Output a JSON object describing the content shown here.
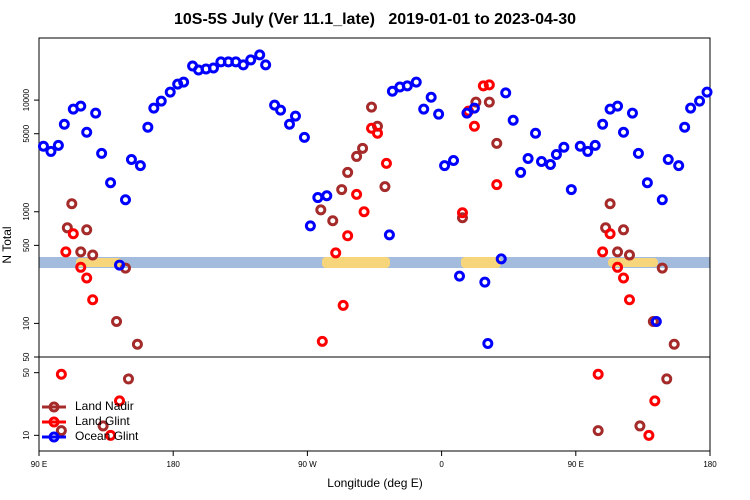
{
  "chart_data": [
    {
      "type": "scatter",
      "title": "10S-5S July (Ver 11.1_late)   2019-01-01 to 2023-04-30",
      "y_label": "N Total",
      "ylog": true,
      "xlim": [
        90,
        540
      ],
      "ylim": [
        50,
        36000
      ],
      "yticks": [
        50,
        100,
        500,
        1000,
        5000,
        10000
      ],
      "series": [
        {
          "color": "#a52a2a",
          "x": [
            109,
            112,
            118,
            122,
            126,
            142,
            148,
            156,
            279,
            287,
            293,
            297,
            303,
            307,
            313,
            317,
            322,
            374,
            383,
            392,
            397,
            470,
            473,
            478,
            482,
            486,
            502,
            508,
            516
          ],
          "values": [
            718,
            1180,
            437,
            689,
            410,
            104,
            313,
            65,
            1040,
            830,
            1580,
            2250,
            3130,
            3700,
            8650,
            5830,
            1680,
            884,
            9590,
            9590,
            4100,
            718,
            1180,
            437,
            689,
            410,
            104,
            313,
            65
          ]
        },
        {
          "color": "#ff0000",
          "x": [
            108,
            113,
            118,
            122,
            126,
            280,
            289,
            294,
            297,
            303,
            308,
            313,
            317,
            323,
            374,
            378,
            382,
            388,
            392,
            397,
            468,
            473,
            478,
            482,
            486
          ],
          "values": [
            437,
            635,
            318,
            255,
            163,
            69,
            428,
            145,
            609,
            1430,
            1000,
            5600,
            5050,
            2710,
            980,
            7960,
            5830,
            13400,
            13700,
            1750,
            437,
            635,
            318,
            255,
            163
          ]
        },
        {
          "color": "#0000ff",
          "x": [
            93,
            98,
            103,
            107,
            113,
            118,
            122,
            128,
            132,
            138,
            144,
            148,
            152,
            158,
            163,
            167,
            172,
            178,
            183,
            187,
            193,
            197,
            202,
            207,
            212,
            217,
            222,
            227,
            232,
            238,
            242,
            248,
            252,
            258,
            262,
            268,
            272,
            277,
            283,
            325,
            327,
            332,
            337,
            343,
            348,
            353,
            358,
            362,
            368,
            372,
            377,
            382,
            389,
            391,
            400,
            403,
            408,
            413,
            418,
            423,
            427,
            433,
            437,
            442,
            447,
            453,
            458,
            463,
            468,
            473,
            478,
            482,
            488,
            492,
            498,
            504,
            508,
            512,
            519,
            523,
            527,
            533,
            538
          ],
          "values": [
            3860,
            3470,
            3930,
            6080,
            8300,
            8830,
            5150,
            7640,
            3330,
            1820,
            333,
            1280,
            2940,
            2590,
            5720,
            8470,
            9790,
            11800,
            13900,
            14500,
            20200,
            18600,
            19000,
            19400,
            22000,
            22000,
            22000,
            20700,
            22900,
            25400,
            20700,
            9010,
            8130,
            6080,
            7180,
            4640,
            748,
            1340,
            1390,
            621,
            12000,
            13100,
            13400,
            14500,
            8300,
            10600,
            7480,
            2590,
            2880,
            265,
            7640,
            8470,
            234,
            66,
            378,
            11600,
            6600,
            2250,
            3000,
            5050,
            2820,
            2650,
            3260,
            3780,
            1580,
            3860,
            3470,
            3930,
            6080,
            8300,
            8830,
            5150,
            7640,
            3330,
            1820,
            104,
            1280,
            2940,
            2590,
            5720,
            8470,
            9790,
            11800
          ]
        }
      ]
    },
    {
      "type": "scatter",
      "x_label": "Longitude (deg E)",
      "xlim": [
        90,
        540
      ],
      "ylim": [
        0,
        60
      ],
      "yticks": [
        10,
        50
      ],
      "xticks": [
        {
          "value": 90,
          "label": "90 E"
        },
        180,
        {
          "value": 270,
          "label": "90 W"
        },
        {
          "value": 360,
          "label": "0"
        },
        {
          "value": 450,
          "label": "90 E"
        },
        {
          "value": 540,
          "label": "180"
        }
      ],
      "legend": "lower left",
      "series": [
        {
          "name": "Land Nadir",
          "color": "#a52a2a",
          "x": [
            105,
            133,
            150,
            465,
            493,
            511
          ],
          "values": [
            13,
            16,
            46,
            13,
            16,
            46
          ]
        },
        {
          "name": "Land Glint",
          "color": "#ff0000",
          "x": [
            105,
            138,
            144,
            465,
            499,
            503
          ],
          "values": [
            49,
            10,
            32,
            49,
            10,
            32
          ]
        },
        {
          "name": "Ocean Glint",
          "color": "#0000ff",
          "x": [],
          "values": []
        }
      ]
    }
  ]
}
